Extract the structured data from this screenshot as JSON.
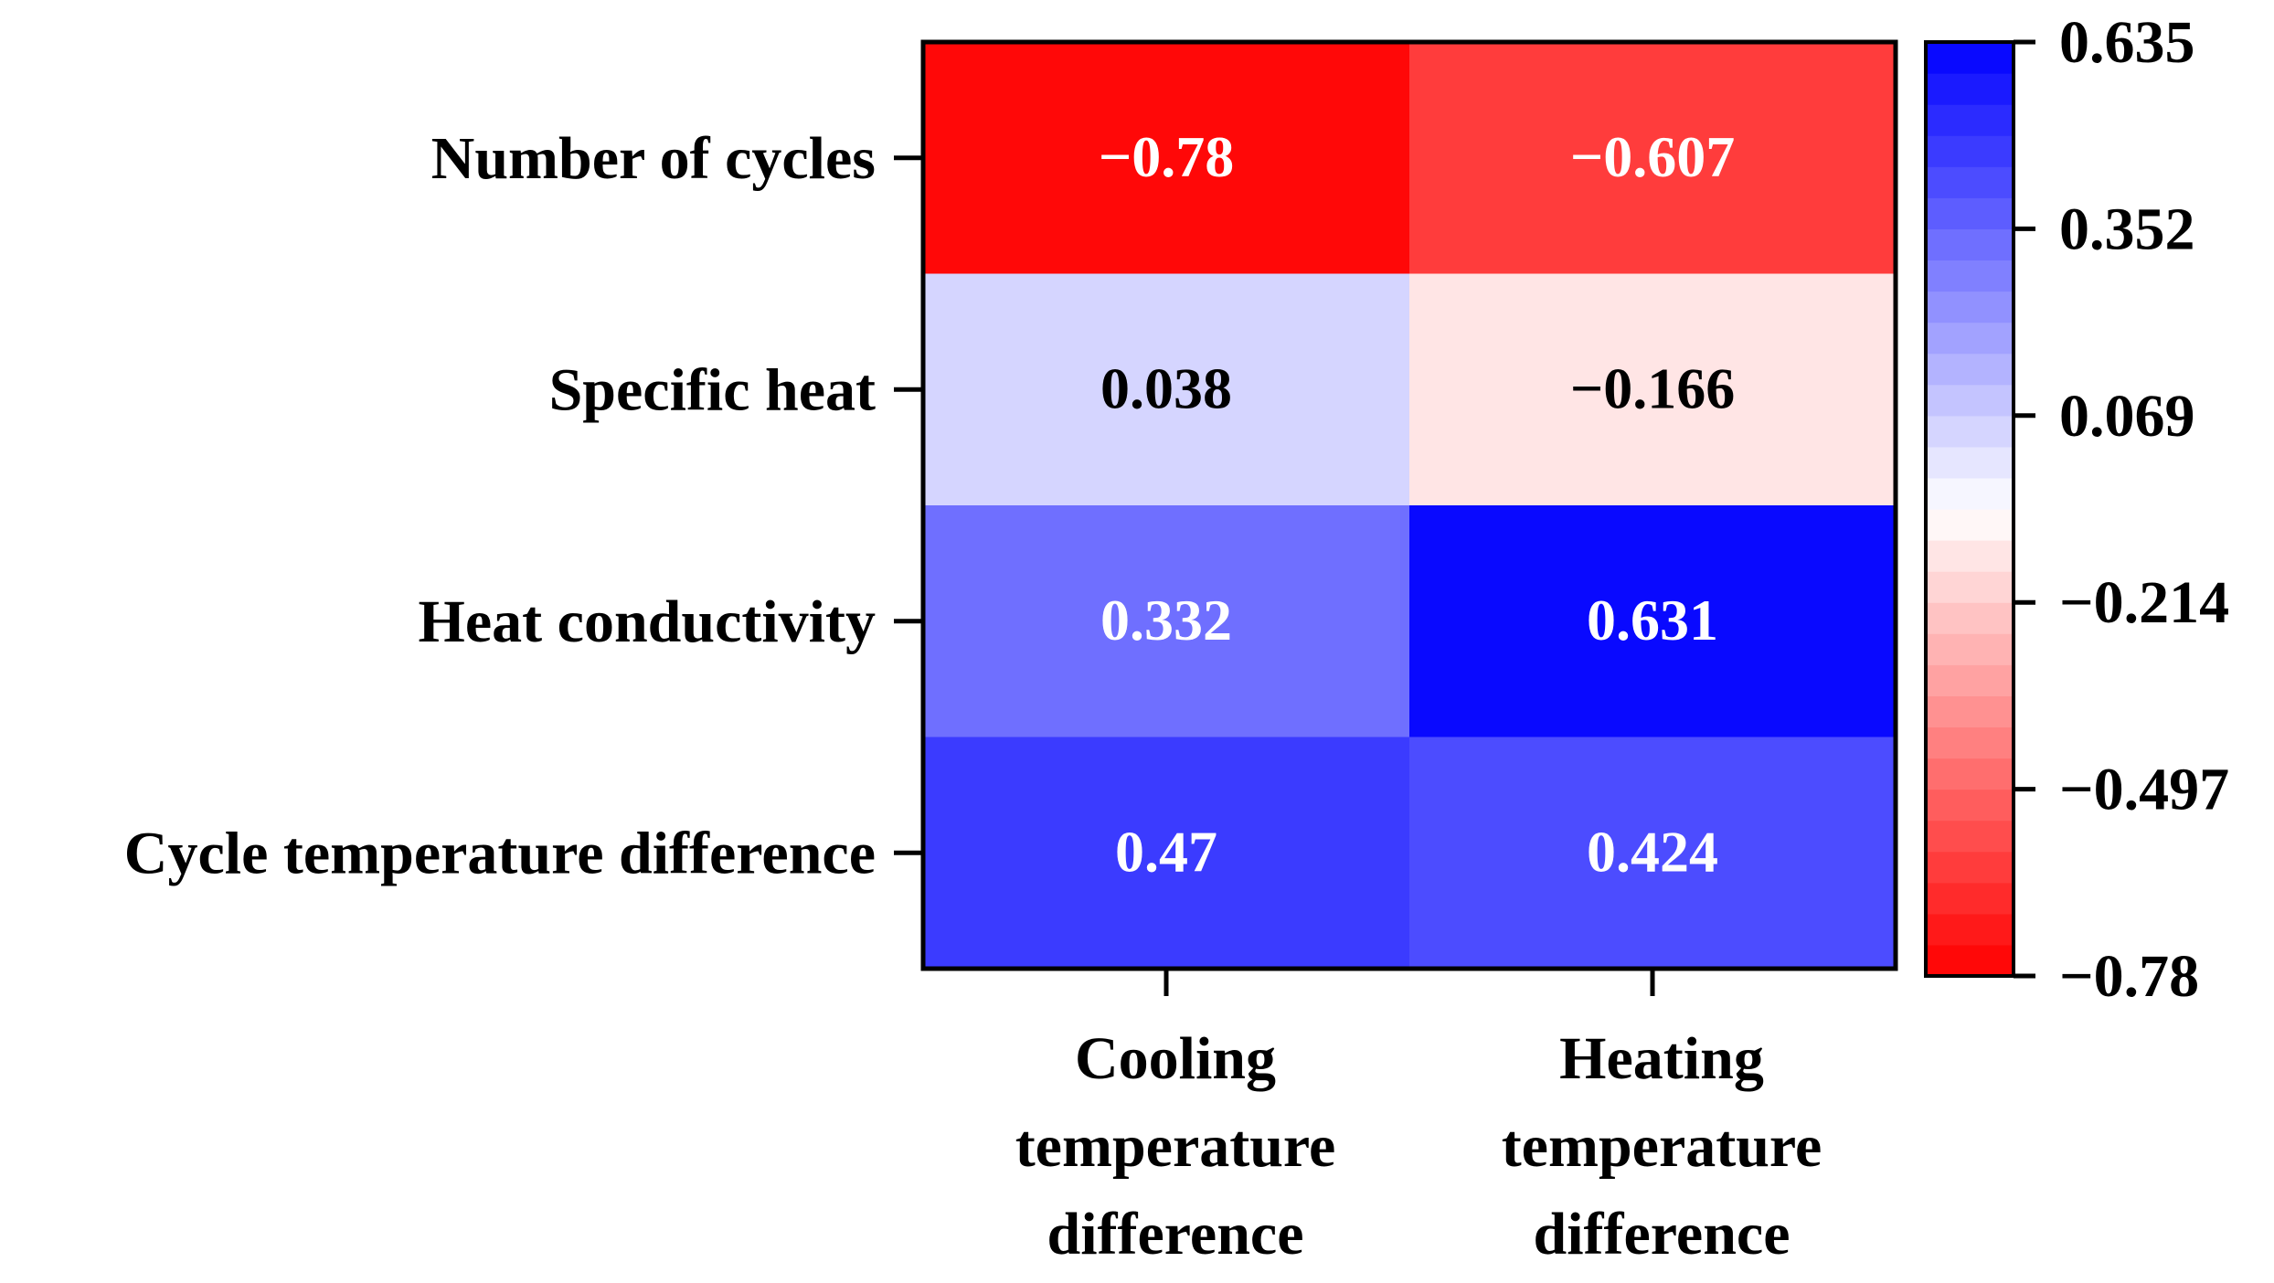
{
  "chart_data": {
    "type": "heatmap",
    "rows": [
      "Number of cycles",
      "Specific heat",
      "Heat conductivity",
      "Cycle temperature difference"
    ],
    "columns": [
      [
        "Cooling",
        "temperature",
        "difference"
      ],
      [
        "Heating",
        "temperature",
        "difference"
      ]
    ],
    "values": [
      [
        -0.78,
        -0.607
      ],
      [
        0.038,
        -0.166
      ],
      [
        0.332,
        0.631
      ],
      [
        0.47,
        0.424
      ]
    ],
    "cell_labels": [
      [
        "−0.78",
        "−0.607"
      ],
      [
        "0.038",
        "−0.166"
      ],
      [
        "0.332",
        "0.631"
      ],
      [
        "0.47",
        "0.424"
      ]
    ],
    "colorbar": {
      "min": -0.78,
      "max": 0.635,
      "ticks": [
        0.635,
        0.352,
        0.069,
        -0.214,
        -0.497,
        -0.78
      ],
      "tick_labels": [
        "0.635",
        "0.352",
        "0.069",
        "−0.214",
        "−0.497",
        "−0.78"
      ],
      "colors": {
        "low": "#ff0000",
        "mid": "#ffffff",
        "high": "#0000ff"
      },
      "levels": 30
    },
    "title": "",
    "xlabel": "",
    "ylabel": ""
  }
}
